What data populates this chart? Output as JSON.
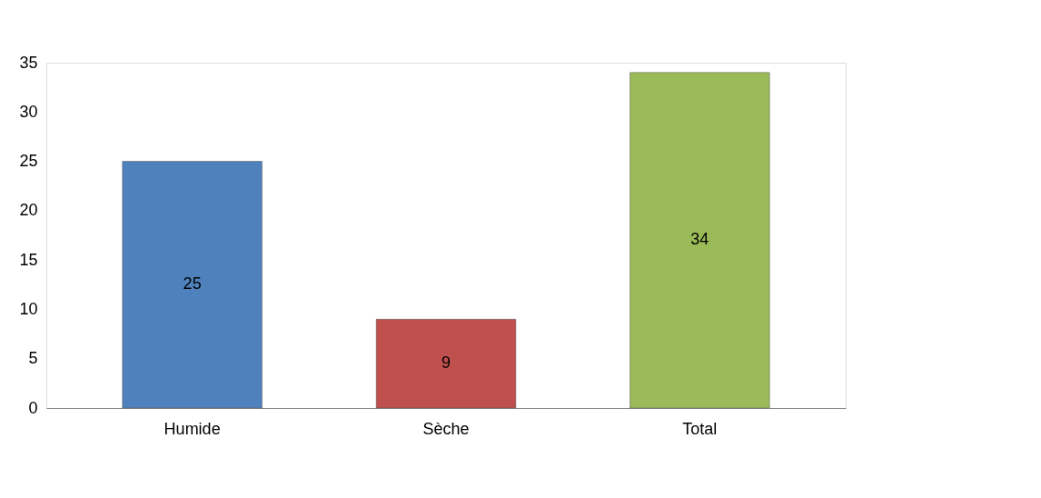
{
  "chart_data": {
    "type": "bar",
    "categories": [
      "Humide",
      "Sèche",
      "Total"
    ],
    "values": [
      25,
      9,
      34
    ],
    "colors": [
      "#4f81bd",
      "#c0504d",
      "#9bbb59"
    ],
    "ylim": [
      0,
      35
    ],
    "yticks": [
      0,
      5,
      10,
      15,
      20,
      25,
      30,
      35
    ],
    "grid": false,
    "data_labels": true
  }
}
